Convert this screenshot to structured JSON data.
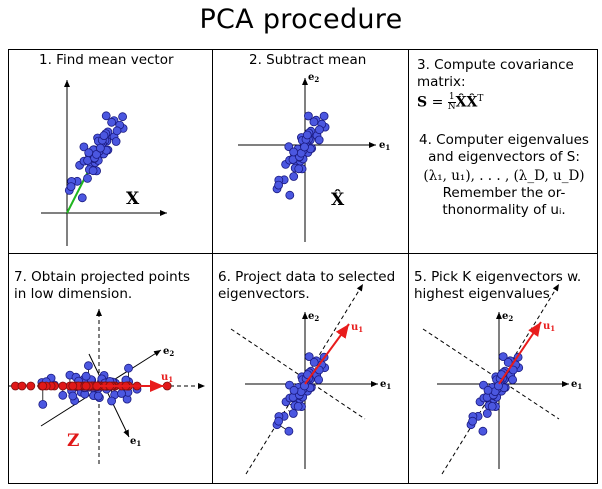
{
  "title": "PCA procedure",
  "panels": {
    "p1": {
      "heading": "1.  Find mean vector",
      "label": "X"
    },
    "p2": {
      "heading": "2.  Subtract mean",
      "label": "X̂",
      "axis_x": "e",
      "axis_x_sub": "1",
      "axis_y": "e",
      "axis_y_sub": "2"
    },
    "p3": {
      "heading_line1": "3.  Compute covariance",
      "heading_line2": "matrix:",
      "formula_lhs": "S",
      "formula_eq": " = ",
      "formula_frac_num": "1",
      "formula_frac_den": "N",
      "formula_rhs": "X̂X̂",
      "formula_sup": "T",
      "step4_line1": "4.  Computer eigenvalues",
      "step4_line2": "and eigenvectors of S:",
      "step4_line3": "(λ₁, u₁), . . . , (λ_D, u_D)",
      "step4_line4": "Remember the or-",
      "step4_line5": "thonormality of uᵢ."
    },
    "p7": {
      "heading_line1": "7.  Obtain projected points",
      "heading_line2": "in low dimension.",
      "label": "Z",
      "e1": "e",
      "e1_sub": "1",
      "e2": "e",
      "e2_sub": "2",
      "u1": "u",
      "u1_sub": "1"
    },
    "p6": {
      "heading_line1": "6.  Project data to selected",
      "heading_line2": "eigenvectors.",
      "e1": "e",
      "e1_sub": "1",
      "e2": "e",
      "e2_sub": "2",
      "u1": "u",
      "u1_sub": "1"
    },
    "p5": {
      "heading_line1": "5.  Pick K eigenvectors w.",
      "heading_line2": "highest eigenvalues",
      "e1": "e",
      "e1_sub": "1",
      "e2": "e",
      "e2_sub": "2",
      "u1": "u",
      "u1_sub": "1"
    }
  },
  "colors": {
    "point_fill": "#4b57e0",
    "point_stroke": "#1a1a80",
    "projected_fill": "#e01818",
    "projected_stroke": "#801010",
    "mean_line": "#1fb51f",
    "u1_arrow": "#e81c1c"
  }
}
